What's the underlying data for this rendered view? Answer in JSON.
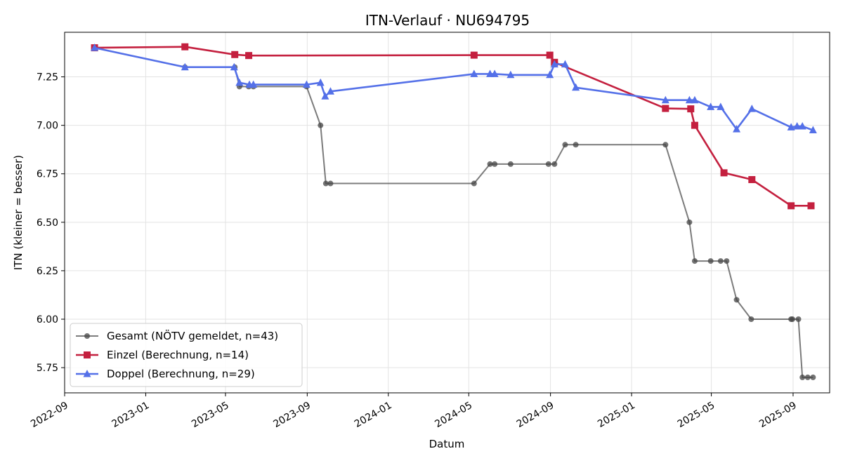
{
  "chart_data": {
    "type": "line",
    "title": "ITN-Verlauf · NU694795",
    "xlabel": "Datum",
    "ylabel": "ITN  (kleiner = besser)",
    "xlim": [
      "2022-09-01",
      "2025-10-26"
    ],
    "ylim": [
      5.62,
      7.48
    ],
    "x_ticks": [
      "2022-09-01",
      "2023-01-01",
      "2023-05-01",
      "2023-09-01",
      "2024-01-01",
      "2024-05-01",
      "2024-09-01",
      "2025-01-01",
      "2025-05-01",
      "2025-09-01"
    ],
    "x_tick_labels": [
      "2022-09",
      "2023-01",
      "2023-05",
      "2023-09",
      "2024-01",
      "2024-05",
      "2024-09",
      "2025-01",
      "2025-05",
      "2025-09"
    ],
    "y_ticks": [
      5.75,
      6.0,
      6.25,
      6.5,
      6.75,
      7.0,
      7.25
    ],
    "y_tick_labels": [
      "5.75",
      "6.00",
      "6.25",
      "6.50",
      "6.75",
      "7.00",
      "7.25"
    ],
    "grid": true,
    "legend_position": "bottom-left",
    "series": [
      {
        "name": "Gesamt (NÖTV gemeldet, n=43)",
        "color": "#444444",
        "marker": "circle",
        "points": [
          [
            "2022-10-16",
            7.4
          ],
          [
            "2023-03-01",
            7.3
          ],
          [
            "2023-05-15",
            7.3
          ],
          [
            "2023-05-22",
            7.2
          ],
          [
            "2023-06-05",
            7.2
          ],
          [
            "2023-06-12",
            7.2
          ],
          [
            "2023-08-31",
            7.2
          ],
          [
            "2023-09-21",
            7.0
          ],
          [
            "2023-09-29",
            6.7
          ],
          [
            "2023-10-06",
            6.7
          ],
          [
            "2024-05-09",
            6.7
          ],
          [
            "2024-06-02",
            6.8
          ],
          [
            "2024-06-09",
            6.8
          ],
          [
            "2024-07-03",
            6.8
          ],
          [
            "2024-08-29",
            6.8
          ],
          [
            "2024-09-07",
            6.8
          ],
          [
            "2024-09-23",
            6.9
          ],
          [
            "2024-10-09",
            6.9
          ],
          [
            "2025-02-21",
            6.9
          ],
          [
            "2025-03-29",
            6.5
          ],
          [
            "2025-04-06",
            6.3
          ],
          [
            "2025-04-30",
            6.3
          ],
          [
            "2025-05-15",
            6.3
          ],
          [
            "2025-05-24",
            6.3
          ],
          [
            "2025-06-08",
            6.1
          ],
          [
            "2025-06-30",
            6.0
          ],
          [
            "2025-08-29",
            6.0
          ],
          [
            "2025-08-31",
            6.0
          ],
          [
            "2025-09-09",
            6.0
          ],
          [
            "2025-09-15",
            5.7
          ],
          [
            "2025-09-23",
            5.7
          ],
          [
            "2025-10-01",
            5.7
          ]
        ]
      },
      {
        "name": "Einzel (Berechnung, n=14)",
        "color": "#c4203f",
        "marker": "square",
        "points": [
          [
            "2022-10-16",
            7.4
          ],
          [
            "2023-03-01",
            7.405
          ],
          [
            "2023-05-15",
            7.365
          ],
          [
            "2023-06-05",
            7.36
          ],
          [
            "2024-05-09",
            7.362
          ],
          [
            "2024-08-31",
            7.362
          ],
          [
            "2024-09-07",
            7.325
          ],
          [
            "2025-02-21",
            7.087
          ],
          [
            "2025-03-31",
            7.085
          ],
          [
            "2025-04-06",
            7.0
          ],
          [
            "2025-05-20",
            6.755
          ],
          [
            "2025-07-01",
            6.72
          ],
          [
            "2025-08-29",
            6.585
          ],
          [
            "2025-09-28",
            6.585
          ]
        ]
      },
      {
        "name": "Doppel (Berechnung, n=29)",
        "color": "#5470e8",
        "marker": "triangle",
        "points": [
          [
            "2022-10-16",
            7.4
          ],
          [
            "2023-03-01",
            7.3
          ],
          [
            "2023-05-14",
            7.3
          ],
          [
            "2023-05-22",
            7.22
          ],
          [
            "2023-06-06",
            7.21
          ],
          [
            "2023-06-12",
            7.21
          ],
          [
            "2023-08-31",
            7.21
          ],
          [
            "2023-09-21",
            7.22
          ],
          [
            "2023-09-28",
            7.15
          ],
          [
            "2023-10-06",
            7.175
          ],
          [
            "2024-05-09",
            7.265
          ],
          [
            "2024-06-02",
            7.265
          ],
          [
            "2024-06-09",
            7.265
          ],
          [
            "2024-07-03",
            7.26
          ],
          [
            "2024-08-31",
            7.26
          ],
          [
            "2024-09-07",
            7.315
          ],
          [
            "2024-09-23",
            7.315
          ],
          [
            "2024-10-09",
            7.195
          ],
          [
            "2025-02-21",
            7.13
          ],
          [
            "2025-03-29",
            7.13
          ],
          [
            "2025-04-06",
            7.13
          ],
          [
            "2025-04-30",
            7.095
          ],
          [
            "2025-05-15",
            7.095
          ],
          [
            "2025-06-08",
            6.98
          ],
          [
            "2025-07-01",
            7.085
          ],
          [
            "2025-08-29",
            6.99
          ],
          [
            "2025-09-07",
            6.995
          ],
          [
            "2025-09-15",
            6.995
          ],
          [
            "2025-10-01",
            6.975
          ]
        ]
      }
    ]
  }
}
